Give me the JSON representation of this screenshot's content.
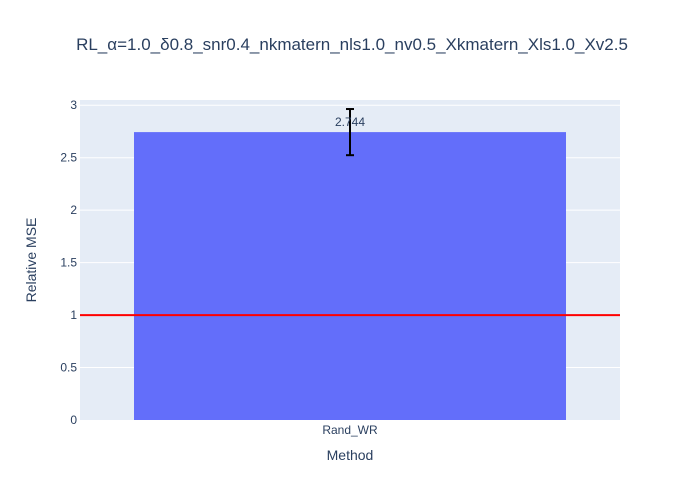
{
  "chart_data": {
    "type": "bar",
    "title": "RL_α=1.0_δ0.8_snr0.4_nkmatern_nls1.0_nv0.5_Xkmatern_Xls1.0_Xv2.5",
    "xlabel": "Method",
    "ylabel": "Relative MSE",
    "categories": [
      "Rand_WR"
    ],
    "values": [
      2.744
    ],
    "error": [
      0.22
    ],
    "data_labels": [
      "2.744"
    ],
    "ylim": [
      0,
      3.05
    ],
    "yticks": [
      0,
      0.5,
      1,
      1.5,
      2,
      2.5,
      3
    ],
    "ytick_labels": [
      "0",
      "0.5",
      "1",
      "1.5",
      "2",
      "2.5",
      "3"
    ],
    "reference_line": {
      "y": 1,
      "color": "#ff0000"
    },
    "bar_color": "#636efa",
    "plot_bg": "#e5ecf6",
    "grid": true
  }
}
